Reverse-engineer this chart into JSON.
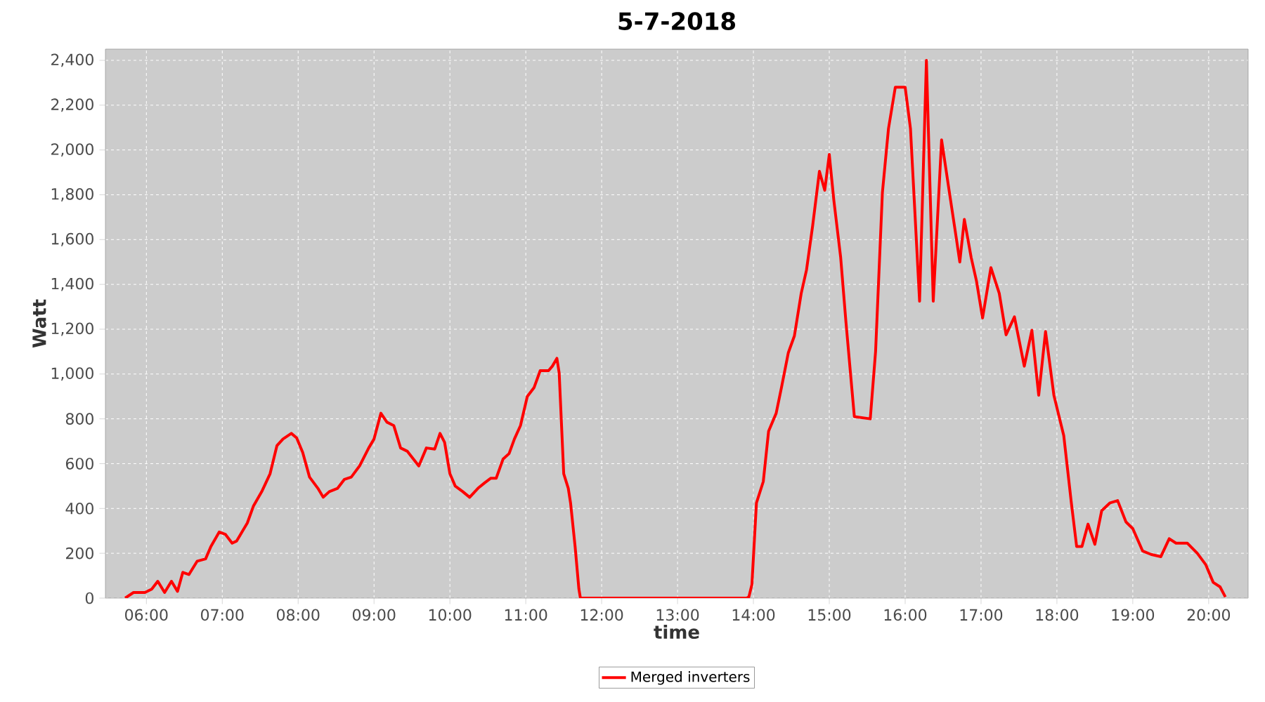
{
  "chart_data": {
    "type": "line",
    "title": "5-7-2018",
    "xlabel": "time",
    "ylabel": "Watt",
    "xlim": [
      5.46,
      20.52
    ],
    "ylim": [
      0,
      2450
    ],
    "xticks": [
      {
        "value": 6,
        "label": "06:00"
      },
      {
        "value": 7,
        "label": "07:00"
      },
      {
        "value": 8,
        "label": "08:00"
      },
      {
        "value": 9,
        "label": "09:00"
      },
      {
        "value": 10,
        "label": "10:00"
      },
      {
        "value": 11,
        "label": "11:00"
      },
      {
        "value": 12,
        "label": "12:00"
      },
      {
        "value": 13,
        "label": "13:00"
      },
      {
        "value": 14,
        "label": "14:00"
      },
      {
        "value": 15,
        "label": "15:00"
      },
      {
        "value": 16,
        "label": "16:00"
      },
      {
        "value": 17,
        "label": "17:00"
      },
      {
        "value": 18,
        "label": "18:00"
      },
      {
        "value": 19,
        "label": "19:00"
      },
      {
        "value": 20,
        "label": "20:00"
      }
    ],
    "yticks": [
      0,
      200,
      400,
      600,
      800,
      {
        "value": 1000,
        "label": "1,000"
      },
      {
        "value": 1200,
        "label": "1,200"
      },
      {
        "value": 1400,
        "label": "1,400"
      },
      {
        "value": 1600,
        "label": "1,600"
      },
      {
        "value": 1800,
        "label": "1,800"
      },
      {
        "value": 2000,
        "label": "2,000"
      },
      {
        "value": 2200,
        "label": "2,200"
      },
      {
        "value": 2400,
        "label": "2,400"
      }
    ],
    "grid": true,
    "legend": "bottom",
    "marker": "none",
    "line_style": "solid",
    "series": [
      {
        "name": "Merged inverters",
        "color": "#ff0000",
        "x": [
          5.72,
          5.83,
          5.98,
          6.07,
          6.15,
          6.24,
          6.33,
          6.41,
          6.48,
          6.56,
          6.67,
          6.78,
          6.85,
          6.96,
          7.04,
          7.13,
          7.19,
          7.26,
          7.33,
          7.41,
          7.52,
          7.63,
          7.72,
          7.8,
          7.91,
          7.98,
          8.06,
          8.15,
          8.26,
          8.33,
          8.41,
          8.52,
          8.61,
          8.7,
          8.81,
          8.93,
          9.0,
          9.09,
          9.17,
          9.26,
          9.35,
          9.44,
          9.59,
          9.69,
          9.8,
          9.87,
          9.93,
          10.0,
          10.07,
          10.17,
          10.26,
          10.37,
          10.46,
          10.54,
          10.61,
          10.7,
          10.78,
          10.85,
          10.93,
          11.02,
          11.11,
          11.19,
          11.3,
          11.35,
          11.41,
          11.44,
          11.5,
          11.56,
          11.59,
          11.65,
          11.7,
          11.72,
          11.85,
          13.91,
          13.94,
          13.98,
          14.04,
          14.13,
          14.2,
          14.3,
          14.37,
          14.46,
          14.54,
          14.63,
          14.7,
          14.78,
          14.87,
          14.94,
          15.0,
          15.06,
          15.15,
          15.22,
          15.33,
          15.54,
          15.61,
          15.7,
          15.78,
          15.87,
          16.0,
          16.07,
          16.19,
          16.28,
          16.37,
          16.48,
          16.57,
          16.67,
          16.72,
          16.78,
          16.87,
          16.94,
          17.02,
          17.13,
          17.24,
          17.33,
          17.44,
          17.57,
          17.67,
          17.76,
          17.85,
          17.96,
          18.09,
          18.19,
          18.26,
          18.33,
          18.41,
          18.5,
          18.59,
          18.7,
          18.8,
          18.91,
          19.0,
          19.13,
          19.24,
          19.37,
          19.48,
          19.57,
          19.72,
          19.85,
          19.96,
          20.06,
          20.15,
          20.22
        ],
        "values": [
          0,
          25,
          25,
          40,
          75,
          25,
          75,
          30,
          115,
          105,
          165,
          175,
          230,
          295,
          285,
          245,
          255,
          295,
          335,
          410,
          475,
          555,
          680,
          710,
          735,
          715,
          650,
          540,
          490,
          450,
          475,
          490,
          530,
          540,
          590,
          670,
          710,
          825,
          785,
          770,
          670,
          655,
          590,
          670,
          665,
          735,
          695,
          555,
          500,
          475,
          450,
          490,
          515,
          535,
          535,
          620,
          645,
          710,
          770,
          900,
          940,
          1015,
          1015,
          1035,
          1070,
          1005,
          555,
          490,
          425,
          230,
          40,
          0,
          0,
          0,
          5,
          60,
          425,
          520,
          745,
          825,
          940,
          1095,
          1170,
          1360,
          1465,
          1660,
          1905,
          1820,
          1980,
          1775,
          1520,
          1230,
          810,
          800,
          1100,
          1810,
          2095,
          2280,
          2280,
          2095,
          1325,
          2400,
          1325,
          2045,
          1840,
          1615,
          1500,
          1690,
          1520,
          1415,
          1250,
          1475,
          1360,
          1175,
          1255,
          1035,
          1195,
          905,
          1190,
          905,
          725,
          425,
          230,
          230,
          330,
          240,
          390,
          425,
          435,
          340,
          310,
          210,
          195,
          185,
          265,
          245,
          245,
          200,
          150,
          70,
          50,
          5
        ]
      }
    ]
  }
}
